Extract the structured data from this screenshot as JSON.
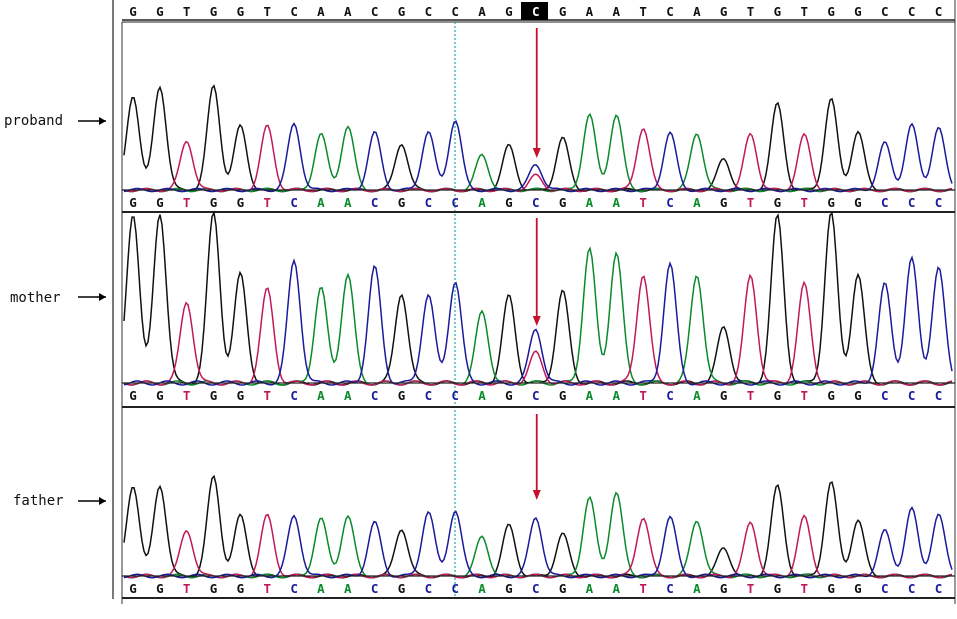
{
  "sequence": "GGTGGTCAACGCCAGCGAATCAGTGTGGCCC",
  "highlight_index": 15,
  "base_colors": {
    "G": "#111111",
    "A": "#0a8a2a",
    "T": "#c2185b",
    "C": "#1a1a9c"
  },
  "arrow_color": "#c8102e",
  "guide_color": "#1aa6a6",
  "tracks": [
    {
      "label": "proband",
      "heterozygous": true
    },
    {
      "label": "mother",
      "heterozygous": true
    },
    {
      "label": "father",
      "heterozygous": false
    }
  ],
  "trace_peaks": {
    "proband": [
      0.73,
      0.8,
      0.38,
      0.8,
      0.49,
      0.49,
      0.51,
      0.43,
      0.49,
      0.44,
      0.36,
      0.45,
      0.54,
      0.27,
      0.34,
      0.2,
      0.4,
      0.58,
      0.58,
      0.48,
      0.44,
      0.44,
      0.24,
      0.43,
      0.66,
      0.42,
      0.7,
      0.45,
      0.36,
      0.5,
      0.48
    ],
    "mother": [
      1.0,
      1.0,
      0.48,
      1.0,
      0.64,
      0.55,
      0.72,
      0.56,
      0.64,
      0.68,
      0.53,
      0.52,
      0.6,
      0.42,
      0.51,
      0.32,
      0.54,
      0.79,
      0.77,
      0.64,
      0.7,
      0.64,
      0.33,
      0.63,
      0.98,
      0.58,
      1.0,
      0.64,
      0.58,
      0.73,
      0.68
    ],
    "father": [
      0.65,
      0.65,
      0.33,
      0.71,
      0.43,
      0.43,
      0.43,
      0.41,
      0.43,
      0.38,
      0.34,
      0.46,
      0.47,
      0.28,
      0.36,
      0.42,
      0.3,
      0.56,
      0.6,
      0.42,
      0.42,
      0.4,
      0.2,
      0.38,
      0.64,
      0.42,
      0.67,
      0.4,
      0.32,
      0.48,
      0.44
    ]
  }
}
